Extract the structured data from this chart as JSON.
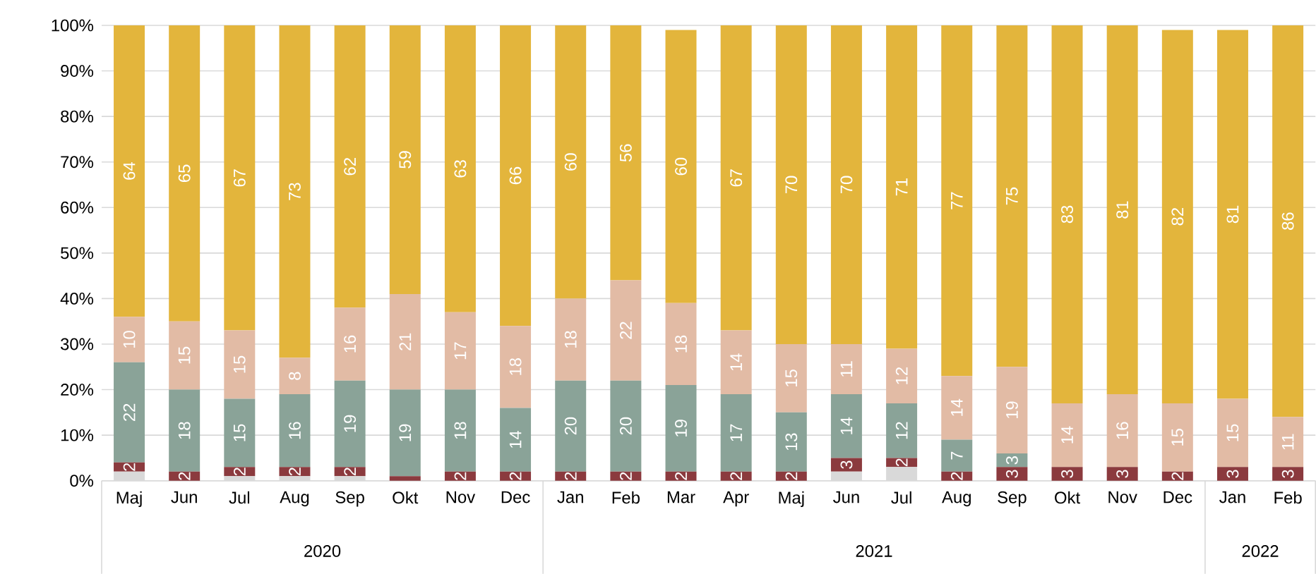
{
  "chart_data": {
    "type": "bar",
    "stacked": true,
    "grid": "y",
    "categories": [
      "Maj",
      "Jun",
      "Jul",
      "Aug",
      "Sep",
      "Okt",
      "Nov",
      "Dec",
      "Jan",
      "Feb",
      "Mar",
      "Apr",
      "Maj",
      "Jun",
      "Jul",
      "Aug",
      "Sep",
      "Okt",
      "Nov",
      "Dec",
      "Jan",
      "Feb"
    ],
    "series": [
      {
        "color": "#d9d9d9",
        "values": [
          2,
          0,
          1,
          1,
          1,
          0,
          0,
          0,
          0,
          0,
          0,
          0,
          0,
          2,
          3,
          0,
          0,
          0,
          0,
          0,
          0,
          0
        ],
        "value_labels": [
          null,
          null,
          null,
          null,
          null,
          null,
          null,
          null,
          null,
          null,
          null,
          null,
          null,
          null,
          null,
          null,
          null,
          null,
          null,
          null,
          null,
          null
        ]
      },
      {
        "color": "#8b3a3e",
        "values": [
          2,
          2,
          2,
          2,
          2,
          1,
          2,
          2,
          2,
          2,
          2,
          2,
          2,
          3,
          2,
          2,
          3,
          3,
          3,
          2,
          3,
          3
        ],
        "value_labels": [
          "2",
          "2",
          "2",
          "2",
          "2",
          null,
          "2",
          "2",
          "2",
          "2",
          "2",
          "2",
          "2",
          "3",
          "2",
          "2",
          "3",
          "3",
          "3",
          "2",
          "3",
          "3"
        ]
      },
      {
        "color": "#8aa398",
        "values": [
          22,
          18,
          15,
          16,
          19,
          19,
          18,
          14,
          20,
          20,
          19,
          17,
          13,
          14,
          12,
          7,
          3,
          0,
          0,
          0,
          0,
          0
        ],
        "value_labels": [
          "22",
          "18",
          "15",
          "16",
          "19",
          "19",
          "18",
          "14",
          "20",
          "20",
          "19",
          "17",
          "13",
          "14",
          "12",
          "7",
          "3",
          null,
          null,
          null,
          null,
          null
        ]
      },
      {
        "color": "#e2bba5",
        "values": [
          10,
          15,
          15,
          8,
          16,
          21,
          17,
          18,
          18,
          22,
          18,
          14,
          15,
          11,
          12,
          14,
          19,
          14,
          16,
          15,
          15,
          11
        ],
        "value_labels": [
          "10",
          "15",
          "15",
          "8",
          "16",
          "21",
          "17",
          "18",
          "18",
          "22",
          "18",
          "14",
          "15",
          "11",
          "12",
          "14",
          "19",
          "14",
          "16",
          "15",
          "15",
          "11"
        ]
      },
      {
        "color": "#e3b53c",
        "values": [
          64,
          65,
          67,
          73,
          62,
          59,
          63,
          66,
          60,
          56,
          60,
          67,
          70,
          70,
          71,
          77,
          75,
          83,
          81,
          82,
          81,
          86
        ],
        "value_labels": [
          "64",
          "65",
          "67",
          "73",
          "62",
          "59",
          "63",
          "66",
          "60",
          "56",
          "60",
          "67",
          "70",
          "70",
          "71",
          "77",
          "75",
          "83",
          "81",
          "82",
          "81",
          "86"
        ]
      }
    ],
    "ylim": [
      0,
      100
    ],
    "yticks": [
      {
        "value": 0,
        "label": "0%"
      },
      {
        "value": 10,
        "label": "10%"
      },
      {
        "value": 20,
        "label": "20%"
      },
      {
        "value": 30,
        "label": "30%"
      },
      {
        "value": 40,
        "label": "40%"
      },
      {
        "value": 50,
        "label": "50%"
      },
      {
        "value": 60,
        "label": "60%"
      },
      {
        "value": 70,
        "label": "70%"
      },
      {
        "value": 80,
        "label": "80%"
      },
      {
        "value": 90,
        "label": "90%"
      },
      {
        "value": 100,
        "label": "100%"
      }
    ],
    "annotations": [
      "2020",
      "2021",
      "2022"
    ]
  }
}
